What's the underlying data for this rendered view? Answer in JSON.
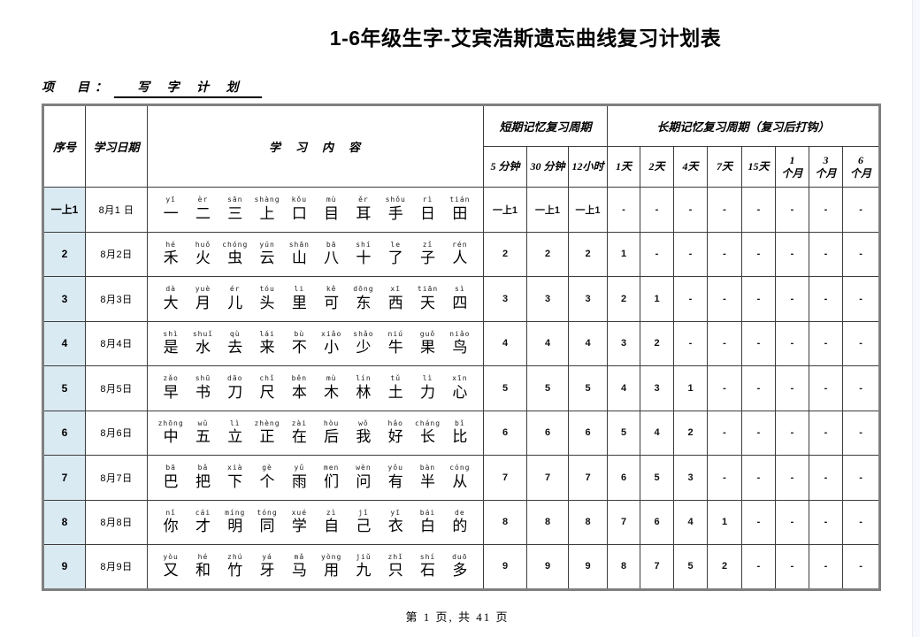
{
  "page": {
    "title": "1-6年级生字-艾宾浩斯遗忘曲线复习计划表",
    "project_label": "项　目：",
    "project_value": "写 字 计 划",
    "footer": "第 1 页, 共 41 页"
  },
  "colors": {
    "serial_column_bg": "#daeaf3",
    "inner_border": "#3c3c3c",
    "outer_border": "#7f7f7f"
  },
  "table": {
    "headers": {
      "serial": "序号",
      "date": "学习日期",
      "content": "学　习　内　容",
      "short_term": "短期记忆复习周期",
      "long_term": "长期记忆复习周期（复习后打钩）",
      "sub": [
        "5 分钟",
        "30 分钟",
        "12小时",
        "1天",
        "2天",
        "4天",
        "7天",
        "15天",
        "1\n个月",
        "3\n个月",
        "6\n个月"
      ]
    },
    "rows": [
      {
        "serial": "一上1",
        "date": "8月1 日",
        "pinyin": [
          "yī",
          "èr",
          "sān",
          "shàng",
          "kǒu",
          "mù",
          "ěr",
          "shǒu",
          "rì",
          "tián"
        ],
        "chars": [
          "一",
          "二",
          "三",
          "上",
          "口",
          "目",
          "耳",
          "手",
          "日",
          "田"
        ],
        "values": [
          "一上1",
          "一上1",
          "一上1",
          "-",
          "-",
          "-",
          "-",
          "-",
          "-",
          "-",
          "-"
        ]
      },
      {
        "serial": "2",
        "date": "8月2日",
        "pinyin": [
          "hé",
          "huǒ",
          "chóng",
          "yún",
          "shān",
          "bā",
          "shí",
          "le",
          "zǐ",
          "rén"
        ],
        "chars": [
          "禾",
          "火",
          "虫",
          "云",
          "山",
          "八",
          "十",
          "了",
          "子",
          "人"
        ],
        "values": [
          "2",
          "2",
          "2",
          "1",
          "-",
          "-",
          "-",
          "-",
          "-",
          "-",
          "-"
        ]
      },
      {
        "serial": "3",
        "date": "8月3日",
        "pinyin": [
          "dà",
          "yuè",
          "ér",
          "tóu",
          "li",
          "kě",
          "dōng",
          "xī",
          "tiān",
          "sì"
        ],
        "chars": [
          "大",
          "月",
          "儿",
          "头",
          "里",
          "可",
          "东",
          "西",
          "天",
          "四"
        ],
        "values": [
          "3",
          "3",
          "3",
          "2",
          "1",
          "-",
          "-",
          "-",
          "-",
          "-",
          "-"
        ]
      },
      {
        "serial": "4",
        "date": "8月4日",
        "pinyin": [
          "shì",
          "shuǐ",
          "qù",
          "lái",
          "bù",
          "xiǎo",
          "shǎo",
          "niú",
          "guǒ",
          "niǎo"
        ],
        "chars": [
          "是",
          "水",
          "去",
          "来",
          "不",
          "小",
          "少",
          "牛",
          "果",
          "鸟"
        ],
        "values": [
          "4",
          "4",
          "4",
          "3",
          "2",
          "-",
          "-",
          "-",
          "-",
          "-",
          "-"
        ]
      },
      {
        "serial": "5",
        "date": "8月5日",
        "pinyin": [
          "zǎo",
          "shū",
          "dāo",
          "chǐ",
          "běn",
          "mù",
          "lín",
          "tǔ",
          "lì",
          "xīn"
        ],
        "chars": [
          "早",
          "书",
          "刀",
          "尺",
          "本",
          "木",
          "林",
          "土",
          "力",
          "心"
        ],
        "values": [
          "5",
          "5",
          "5",
          "4",
          "3",
          "1",
          "-",
          "-",
          "-",
          "-",
          "-"
        ]
      },
      {
        "serial": "6",
        "date": "8月6日",
        "pinyin": [
          "zhōng",
          "wǔ",
          "lì",
          "zhèng",
          "zài",
          "hòu",
          "wǒ",
          "hǎo",
          "cháng",
          "bǐ"
        ],
        "chars": [
          "中",
          "五",
          "立",
          "正",
          "在",
          "后",
          "我",
          "好",
          "长",
          "比"
        ],
        "values": [
          "6",
          "6",
          "6",
          "5",
          "4",
          "2",
          "-",
          "-",
          "-",
          "-",
          "-"
        ]
      },
      {
        "serial": "7",
        "date": "8月7日",
        "pinyin": [
          "bā",
          "bǎ",
          "xià",
          "gè",
          "yǔ",
          "men",
          "wèn",
          "yǒu",
          "bàn",
          "cóng"
        ],
        "chars": [
          "巴",
          "把",
          "下",
          "个",
          "雨",
          "们",
          "问",
          "有",
          "半",
          "从"
        ],
        "values": [
          "7",
          "7",
          "7",
          "6",
          "5",
          "3",
          "-",
          "-",
          "-",
          "-",
          "-"
        ]
      },
      {
        "serial": "8",
        "date": "8月8日",
        "pinyin": [
          "nǐ",
          "cái",
          "míng",
          "tóng",
          "xué",
          "zì",
          "jǐ",
          "yī",
          "bái",
          "de"
        ],
        "chars": [
          "你",
          "才",
          "明",
          "同",
          "学",
          "自",
          "己",
          "衣",
          "白",
          "的"
        ],
        "values": [
          "8",
          "8",
          "8",
          "7",
          "6",
          "4",
          "1",
          "-",
          "-",
          "-",
          "-"
        ]
      },
      {
        "serial": "9",
        "date": "8月9日",
        "pinyin": [
          "yòu",
          "hé",
          "zhú",
          "yá",
          "mǎ",
          "yòng",
          "jiǔ",
          "zhǐ",
          "shí",
          "duō"
        ],
        "chars": [
          "又",
          "和",
          "竹",
          "牙",
          "马",
          "用",
          "九",
          "只",
          "石",
          "多"
        ],
        "values": [
          "9",
          "9",
          "9",
          "8",
          "7",
          "5",
          "2",
          "-",
          "-",
          "-",
          "-"
        ]
      }
    ]
  }
}
